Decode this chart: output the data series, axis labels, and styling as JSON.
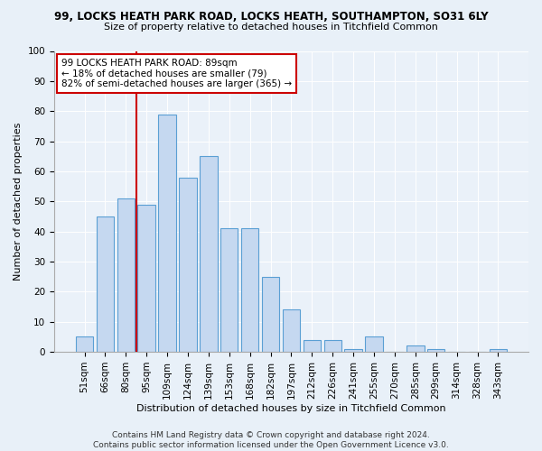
{
  "title_line1": "99, LOCKS HEATH PARK ROAD, LOCKS HEATH, SOUTHAMPTON, SO31 6LY",
  "title_line2": "Size of property relative to detached houses in Titchfield Common",
  "xlabel": "Distribution of detached houses by size in Titchfield Common",
  "ylabel": "Number of detached properties",
  "categories": [
    "51sqm",
    "66sqm",
    "80sqm",
    "95sqm",
    "109sqm",
    "124sqm",
    "139sqm",
    "153sqm",
    "168sqm",
    "182sqm",
    "197sqm",
    "212sqm",
    "226sqm",
    "241sqm",
    "255sqm",
    "270sqm",
    "285sqm",
    "299sqm",
    "314sqm",
    "328sqm",
    "343sqm"
  ],
  "values": [
    5,
    45,
    51,
    49,
    79,
    58,
    65,
    41,
    41,
    25,
    14,
    4,
    4,
    1,
    5,
    0,
    2,
    1,
    0,
    0,
    1
  ],
  "bar_color": "#c5d8f0",
  "bar_edge_color": "#5a9fd4",
  "vline_x": 2.5,
  "vline_color": "#cc0000",
  "annotation_text": "99 LOCKS HEATH PARK ROAD: 89sqm\n← 18% of detached houses are smaller (79)\n82% of semi-detached houses are larger (365) →",
  "annotation_box_color": "#ffffff",
  "annotation_box_edge_color": "#cc0000",
  "ylim": [
    0,
    100
  ],
  "yticks": [
    0,
    10,
    20,
    30,
    40,
    50,
    60,
    70,
    80,
    90,
    100
  ],
  "footer_line1": "Contains HM Land Registry data © Crown copyright and database right 2024.",
  "footer_line2": "Contains public sector information licensed under the Open Government Licence v3.0.",
  "bg_color": "#e8f0f8",
  "plot_bg_color": "#eaf1f9",
  "title1_fontsize": 8.5,
  "title2_fontsize": 8.0,
  "xlabel_fontsize": 8.0,
  "ylabel_fontsize": 8.0,
  "tick_fontsize": 7.5,
  "annotation_fontsize": 7.5,
  "footer_fontsize": 6.5
}
